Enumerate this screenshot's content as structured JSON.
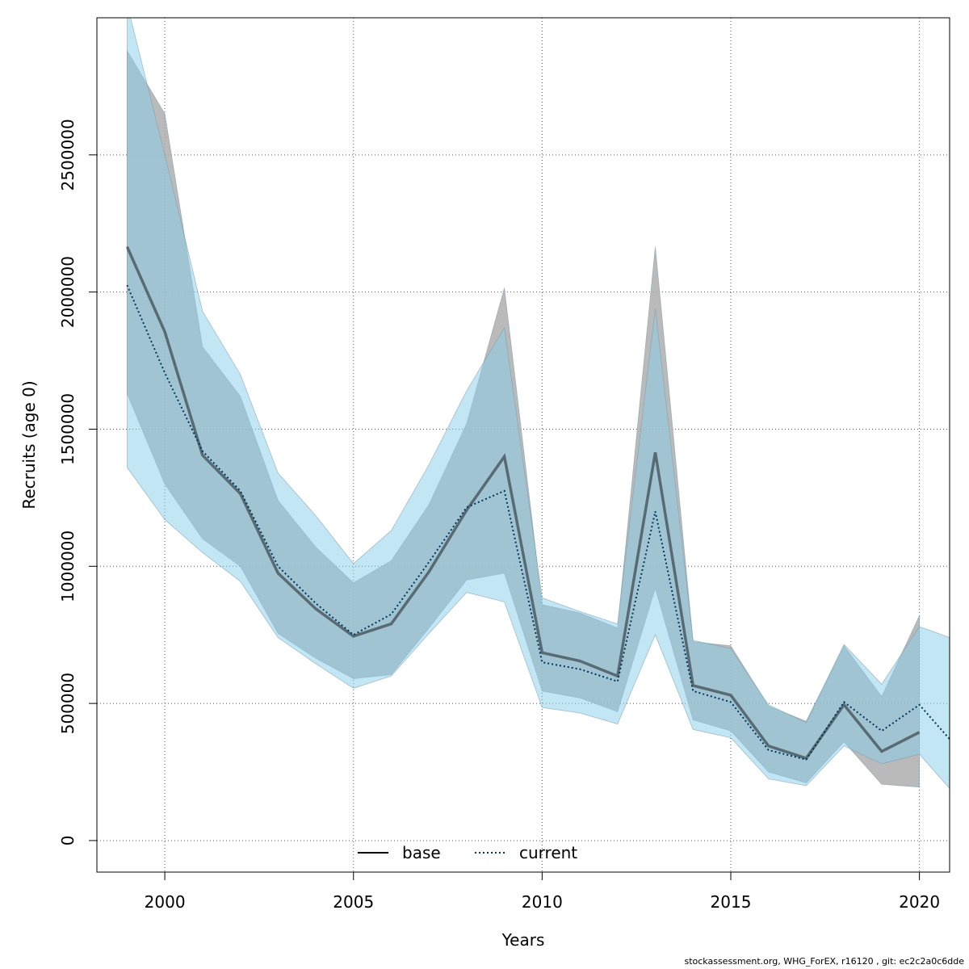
{
  "colors": {
    "base_band": "#a9a9a9",
    "current_band": "#87ceeb",
    "base_line": "#000000",
    "current_line": "#00365c",
    "grid": "#555555"
  },
  "chart_data": {
    "type": "line",
    "title": "",
    "xlabel": "Years",
    "ylabel": "Recruits (age 0)",
    "xlim": [
      1998.2,
      2020.8
    ],
    "ylim": [
      -115000,
      3000000
    ],
    "xticks": [
      2000,
      2005,
      2010,
      2015,
      2020
    ],
    "xtick_labels": [
      "2000",
      "2005",
      "2010",
      "2015",
      "2020"
    ],
    "yticks": [
      0,
      500000,
      1000000,
      1500000,
      2000000,
      2500000
    ],
    "ytick_labels": [
      "0",
      "500000",
      "1000000",
      "1500000",
      "2000000",
      "2500000"
    ],
    "grid": true,
    "legend": {
      "position": "bottom-center",
      "entries": [
        {
          "label": "base",
          "style": "solid"
        },
        {
          "label": "current",
          "style": "dotted"
        }
      ]
    },
    "series": [
      {
        "name": "base",
        "x": [
          1999,
          2000,
          2001,
          2002,
          2003,
          2004,
          2005,
          2006,
          2007,
          2008,
          2009,
          2010,
          2011,
          2012,
          2013,
          2014,
          2015,
          2016,
          2017,
          2018,
          2019,
          2020
        ],
        "values": [
          2165000,
          1855000,
          1405000,
          1265000,
          975000,
          845000,
          745000,
          790000,
          980000,
          1205000,
          1400000,
          685000,
          655000,
          600000,
          1415000,
          565000,
          530000,
          345000,
          300000,
          495000,
          325000,
          395000
        ],
        "lower": [
          1630000,
          1300000,
          1100000,
          1000000,
          755000,
          665000,
          590000,
          605000,
          775000,
          950000,
          975000,
          545000,
          520000,
          470000,
          920000,
          440000,
          400000,
          250000,
          210000,
          360000,
          205000,
          195000
        ],
        "upper": [
          2880000,
          2650000,
          1800000,
          1620000,
          1240000,
          1070000,
          940000,
          1020000,
          1225000,
          1520000,
          2015000,
          860000,
          830000,
          775000,
          2165000,
          725000,
          710000,
          490000,
          435000,
          710000,
          525000,
          820000
        ]
      },
      {
        "name": "current",
        "x": [
          1999,
          2000,
          2001,
          2002,
          2003,
          2004,
          2005,
          2006,
          2007,
          2008,
          2009,
          2010,
          2011,
          2012,
          2013,
          2014,
          2015,
          2016,
          2017,
          2018,
          2019,
          2020,
          2020.8
        ],
        "values": [
          2025000,
          1705000,
          1420000,
          1275000,
          1000000,
          865000,
          750000,
          825000,
          1015000,
          1215000,
          1275000,
          650000,
          625000,
          580000,
          1200000,
          545000,
          505000,
          330000,
          295000,
          505000,
          400000,
          495000,
          370000
        ],
        "lower": [
          1360000,
          1170000,
          1050000,
          945000,
          740000,
          645000,
          555000,
          600000,
          755000,
          905000,
          870000,
          485000,
          465000,
          425000,
          750000,
          405000,
          375000,
          225000,
          200000,
          345000,
          280000,
          315000,
          190000
        ],
        "upper": [
          3050000,
          2500000,
          1930000,
          1700000,
          1340000,
          1185000,
          1010000,
          1130000,
          1370000,
          1640000,
          1870000,
          885000,
          835000,
          790000,
          1940000,
          730000,
          700000,
          495000,
          430000,
          715000,
          570000,
          780000,
          740000
        ]
      }
    ]
  },
  "footer": {
    "text": "stockassessment.org, WHG_ForEX, r16120 , git: ec2c2a0c6dde"
  }
}
